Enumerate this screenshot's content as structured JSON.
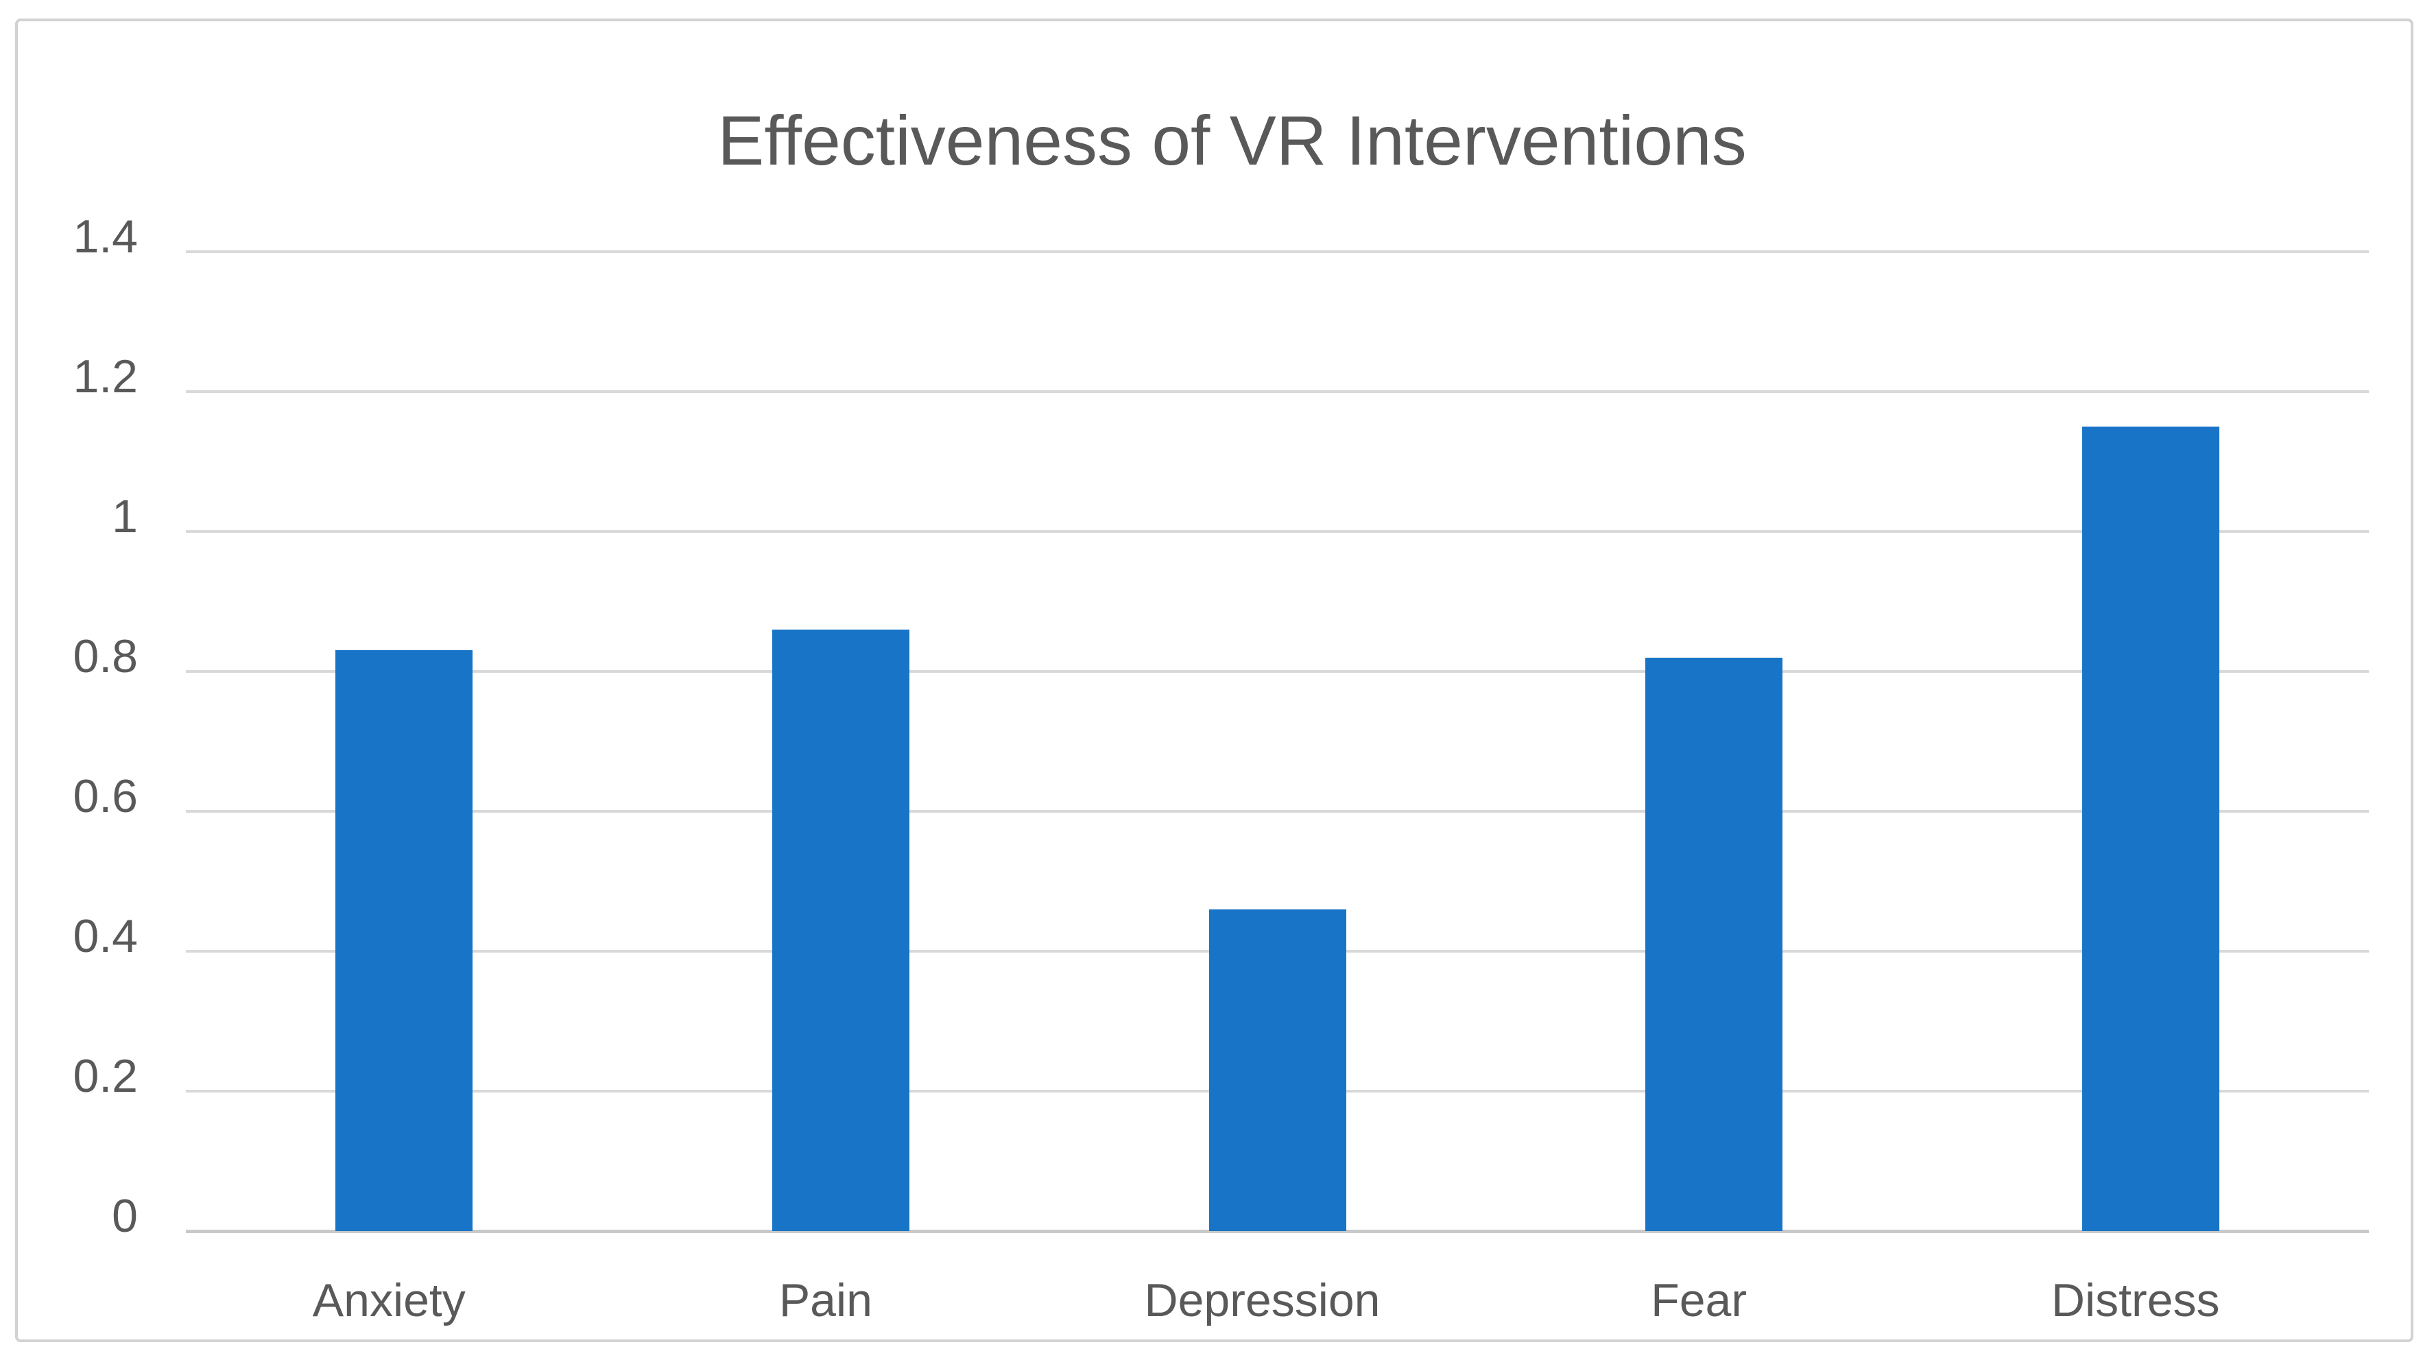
{
  "chart_data": {
    "type": "bar",
    "title": "Effectiveness of VR Interventions",
    "categories": [
      "Anxiety",
      "Pain",
      "Depression",
      "Fear",
      "Distress"
    ],
    "values": [
      0.83,
      0.86,
      0.46,
      0.82,
      1.15
    ],
    "xlabel": "",
    "ylabel": "",
    "ylim": [
      0,
      1.4
    ],
    "ytick_values": [
      0,
      0.2,
      0.4,
      0.6,
      0.8,
      1,
      1.2,
      1.4
    ],
    "ytick_labels": [
      "0",
      "0.2",
      "0.4",
      "0.6",
      "0.8",
      "1",
      "1.2",
      "1.4"
    ],
    "grid": true,
    "legend": false,
    "colors": {
      "bar": "#1874c7",
      "gridline": "#d9d9d9",
      "axis_line": "#c9c9c9",
      "text": "#595959",
      "frame_border": "#d2d2d2",
      "background": "#ffffff"
    }
  }
}
